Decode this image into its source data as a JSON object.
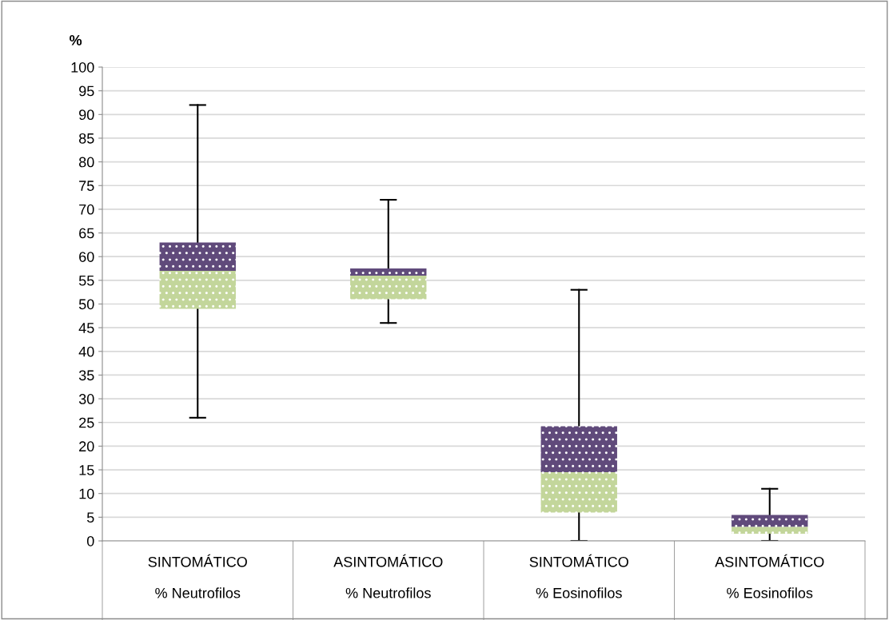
{
  "chart_data": {
    "type": "box",
    "ylabel": "%",
    "categories": [
      "SINTOMÁTICO\n\n% Neutrofilos",
      "ASINTOMÁTICO\n\n% Neutrofilos",
      "SINTOMÁTICO\n\n% Eosinofilos",
      "ASINTOMÁTICO\n\n% Eosinofilos"
    ],
    "boxes": [
      {
        "low": 26,
        "q1": 49,
        "median": 57,
        "q3": 63,
        "high": 92
      },
      {
        "low": 46,
        "q1": 51,
        "median": 56,
        "q3": 57.5,
        "high": 72
      },
      {
        "low": 0,
        "q1": 6,
        "median": 14.5,
        "q3": 24.2,
        "high": 53
      },
      {
        "low": 0,
        "q1": 1.5,
        "median": 3,
        "q3": 5.5,
        "high": 11
      }
    ],
    "colors": [
      [
        "#c3d69b",
        "#604a7b"
      ],
      [
        "#c3d69b",
        "#604a7b"
      ],
      [
        "#c3d69b",
        "#604a7b"
      ],
      [
        "#c3d69b",
        "#604a7b"
      ]
    ],
    "ylim": [
      0,
      100
    ],
    "yticks": [
      0,
      5,
      10,
      15,
      20,
      25,
      30,
      35,
      40,
      45,
      50,
      55,
      60,
      65,
      70,
      75,
      80,
      85,
      90,
      95,
      100
    ],
    "grid": "y"
  }
}
